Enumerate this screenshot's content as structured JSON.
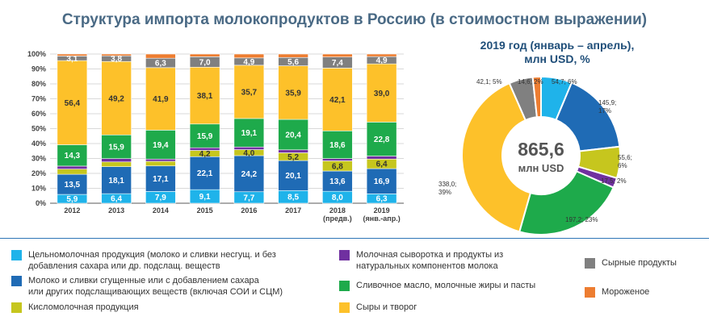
{
  "title": "Структура  импорта молокопродуктов в Россию (в стоимостном выражении)",
  "colors": {
    "whole_milk": "#1fb3ea",
    "condensed": "#1f6bb5",
    "fermented": "#c6c61e",
    "whey": "#7030a0",
    "butter": "#1eaa4b",
    "cheese": "#fdc12a",
    "cheese_products": "#808080",
    "ice_cream": "#ed7d31"
  },
  "chart_data": [
    {
      "type": "bar",
      "stacked": true,
      "categories": [
        "2012",
        "2013",
        "2014",
        "2015",
        "2016",
        "2017",
        "2018\n(предв.)",
        "2019\n(янв.-апр.)"
      ],
      "yticks": [
        "0%",
        "10%",
        "20%",
        "30%",
        "40%",
        "50%",
        "60%",
        "70%",
        "80%",
        "90%",
        "100%"
      ],
      "ylim": [
        0,
        100
      ],
      "grid": true,
      "series": [
        {
          "key": "whole_milk",
          "values": [
            5.9,
            6.4,
            7.9,
            9.1,
            7.7,
            8.5,
            8.0,
            6.3
          ],
          "labels": [
            "5,9",
            "6,4",
            "7,9",
            "9,1",
            "7,7",
            "8,5",
            "8,0",
            "6,3"
          ]
        },
        {
          "key": "condensed",
          "values": [
            13.5,
            18.1,
            17.1,
            22.1,
            24.2,
            20.1,
            13.6,
            16.9
          ],
          "labels": [
            "13,5",
            "18,1",
            "17,1",
            "22,1",
            "24,2",
            "20,1",
            "13,6",
            "16,9"
          ]
        },
        {
          "key": "fermented",
          "values": [
            3.5,
            3.2,
            3.1,
            4.2,
            4.0,
            5.2,
            6.8,
            6.4
          ],
          "labels": [
            "",
            "",
            "",
            "4,2",
            "4,0",
            "5,2",
            "6,8",
            "6,4"
          ]
        },
        {
          "key": "whey",
          "values": [
            2.0,
            2.2,
            1.5,
            1.8,
            1.8,
            2.0,
            1.5,
            2.0
          ],
          "labels": [
            "",
            "",
            "",
            "",
            "",
            "",
            "",
            ""
          ]
        },
        {
          "key": "butter",
          "values": [
            14.3,
            15.9,
            19.4,
            15.9,
            19.1,
            20.4,
            18.6,
            22.8
          ],
          "labels": [
            "14,3",
            "15,9",
            "19,4",
            "15,9",
            "19,1",
            "20,4",
            "18,6",
            "22,8"
          ]
        },
        {
          "key": "cheese",
          "values": [
            56.4,
            49.2,
            41.9,
            38.1,
            35.7,
            35.9,
            42.1,
            39.0
          ],
          "labels": [
            "56,4",
            "49,2",
            "41,9",
            "38,1",
            "35,7",
            "35,9",
            "42,1",
            "39,0"
          ]
        },
        {
          "key": "cheese_products",
          "values": [
            3.1,
            3.8,
            6.3,
            7.0,
            4.9,
            5.6,
            7.4,
            4.9
          ],
          "labels": [
            "3,1",
            "3,8",
            "6,3",
            "7,0",
            "4,9",
            "5,6",
            "7,4",
            "4,9"
          ]
        },
        {
          "key": "ice_cream",
          "values": [
            1.3,
            1.2,
            2.8,
            1.8,
            2.6,
            2.3,
            2.0,
            1.7
          ],
          "labels": [
            "",
            "",
            "",
            "",
            "",
            "",
            "",
            ""
          ]
        }
      ]
    },
    {
      "type": "pie",
      "title": "2019 год (январь – апрель),\nмлн USD, %",
      "total_value": "865,6",
      "total_unit": "млн USD",
      "slices": [
        {
          "key": "whole_milk",
          "value": 54.7,
          "label": "54,7; 6%"
        },
        {
          "key": "condensed",
          "value": 145.9,
          "label": "145,9;\n17%"
        },
        {
          "key": "fermented",
          "value": 55.6,
          "label": "55,6;\n6%"
        },
        {
          "key": "whey",
          "value": 17.5,
          "label": "17,5; 2%"
        },
        {
          "key": "butter",
          "value": 197.2,
          "label": "197,2; 23%"
        },
        {
          "key": "cheese",
          "value": 338.0,
          "label": "338,0;\n39%"
        },
        {
          "key": "cheese_products",
          "value": 42.1,
          "label": "42,1; 5%"
        },
        {
          "key": "ice_cream",
          "value": 14.6,
          "label": "14,6; 2%"
        }
      ]
    }
  ],
  "legend": [
    {
      "key": "whole_milk",
      "text": "Цельномолочная продукция (молоко и сливки несгущ. и без\nдобавления сахара или др. подслащ. веществ"
    },
    {
      "key": "condensed",
      "text": "Молоко и сливки сгущенные или с добавлением сахара\nили других подслащивающих веществ (включая СОИ и СЦМ)"
    },
    {
      "key": "fermented",
      "text": "Кисломолочная продукция"
    },
    {
      "key": "whey",
      "text": "Молочная сыворотка и продукты из\nнатуральных компонентов молока"
    },
    {
      "key": "butter",
      "text": "Сливочное масло, молочные жиры и пасты"
    },
    {
      "key": "cheese",
      "text": "Сыры и творог"
    },
    {
      "key": "cheese_products",
      "text": "Сырные продукты"
    },
    {
      "key": "ice_cream",
      "text": "Мороженое"
    }
  ]
}
